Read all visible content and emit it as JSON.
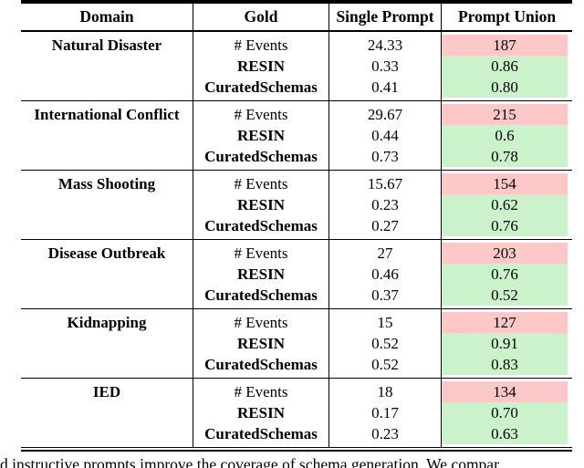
{
  "table": {
    "headers": {
      "domain": "Domain",
      "gold": "Gold",
      "single": "Single Prompt",
      "union": "Prompt Union"
    },
    "groups": [
      {
        "domain": "Natural Disaster",
        "rows": [
          {
            "gold": "# Events",
            "single": "24.33",
            "union": "187"
          },
          {
            "gold": "RESIN",
            "single": "0.33",
            "union": "0.86"
          },
          {
            "gold": "CuratedSchemas",
            "single": "0.41",
            "union": "0.80"
          }
        ]
      },
      {
        "domain": "International Conflict",
        "rows": [
          {
            "gold": "# Events",
            "single": "29.67",
            "union": "215"
          },
          {
            "gold": "RESIN",
            "single": "0.44",
            "union": "0.6"
          },
          {
            "gold": "CuratedSchemas",
            "single": "0.73",
            "union": "0.78"
          }
        ]
      },
      {
        "domain": "Mass Shooting",
        "rows": [
          {
            "gold": "# Events",
            "single": "15.67",
            "union": "154"
          },
          {
            "gold": "RESIN",
            "single": "0.23",
            "union": "0.62"
          },
          {
            "gold": "CuratedSchemas",
            "single": "0.27",
            "union": "0.76"
          }
        ]
      },
      {
        "domain": "Disease Outbreak",
        "rows": [
          {
            "gold": "# Events",
            "single": "27",
            "union": "203"
          },
          {
            "gold": "RESIN",
            "single": "0.46",
            "union": "0.76"
          },
          {
            "gold": "CuratedSchemas",
            "single": "0.37",
            "union": "0.52"
          }
        ]
      },
      {
        "domain": "Kidnapping",
        "rows": [
          {
            "gold": "# Events",
            "single": "15",
            "union": "127"
          },
          {
            "gold": "RESIN",
            "single": "0.52",
            "union": "0.91"
          },
          {
            "gold": "CuratedSchemas",
            "single": "0.52",
            "union": "0.83"
          }
        ]
      },
      {
        "domain": "IED",
        "rows": [
          {
            "gold": "# Events",
            "single": "18",
            "union": "134"
          },
          {
            "gold": "RESIN",
            "single": "0.17",
            "union": "0.70"
          },
          {
            "gold": "CuratedSchemas",
            "single": "0.23",
            "union": "0.63"
          }
        ]
      }
    ]
  },
  "colors": {
    "events_cell_bg": "#ffc8c8",
    "metric_cell_bg": "#ccf2cc"
  },
  "caption": "d instructive prompts improve the coverage of schema generation.  We compar"
}
